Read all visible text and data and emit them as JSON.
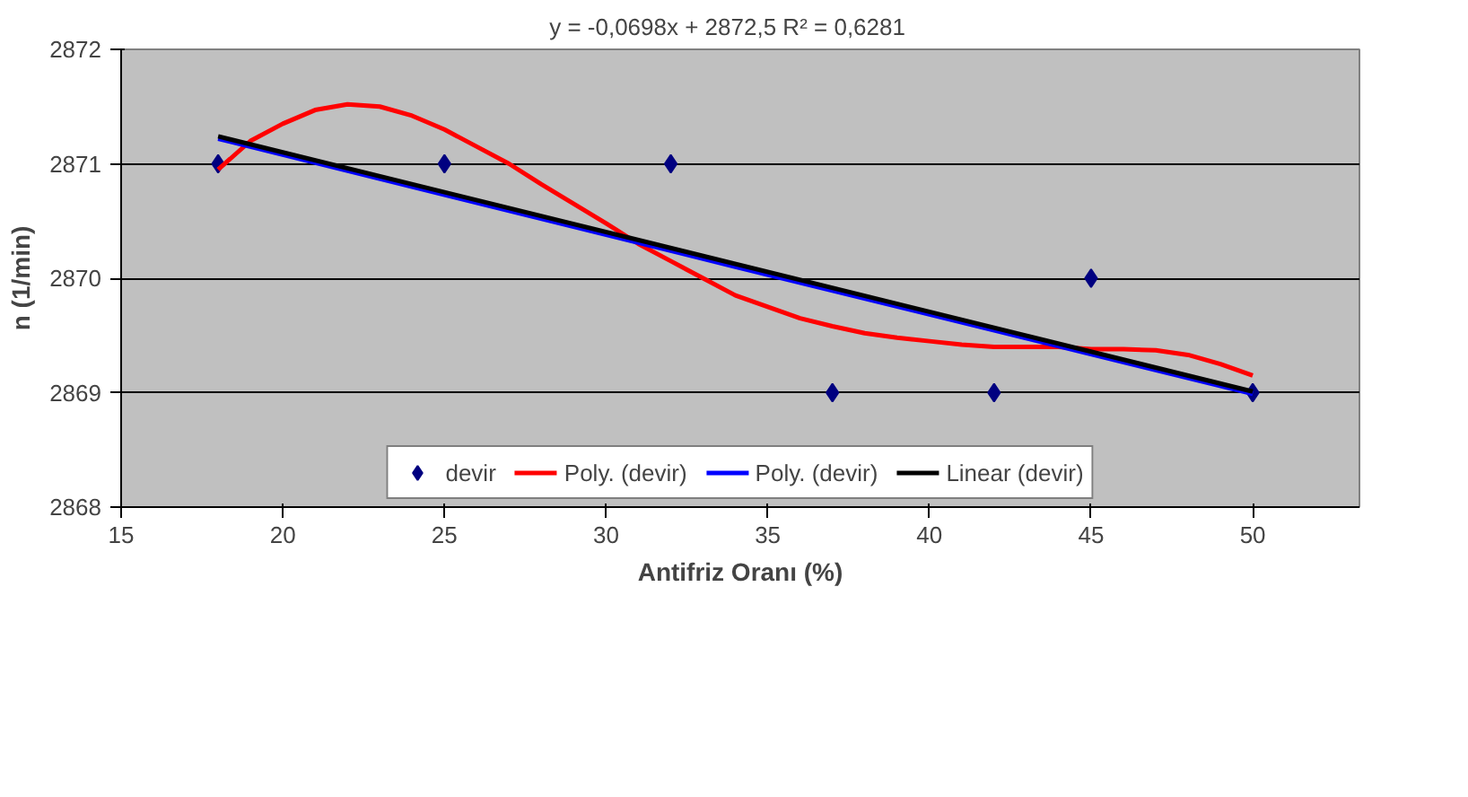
{
  "chart_data": {
    "type": "scatter",
    "xlabel": "Antifriz Oranı (%)",
    "ylabel": "n (1/min)",
    "annotations": [
      "y = -0,0698x + 2872,5     R² = 0,6281"
    ],
    "xlim": [
      15,
      53.3
    ],
    "ylim": [
      2868,
      2872
    ],
    "xticks": [
      15,
      20,
      25,
      30,
      35,
      40,
      45,
      50
    ],
    "yticks": [
      2868,
      2869,
      2870,
      2871,
      2872
    ],
    "grid": "y",
    "legend": "bottom",
    "series": [
      {
        "name": "devir",
        "marker": "diamond",
        "color": "#000080",
        "x": [
          18,
          25,
          32,
          37,
          42,
          45,
          50
        ],
        "values": [
          2871,
          2871,
          2871,
          2869,
          2869,
          2870,
          2869
        ]
      },
      {
        "name": "Poly. (devir)",
        "type": "line",
        "color": "#ff0000",
        "x": [
          18,
          19,
          20,
          21,
          22,
          23,
          24,
          25,
          26,
          27,
          28,
          29,
          30,
          31,
          32,
          33,
          34,
          35,
          36,
          37,
          38,
          39,
          40,
          41,
          42,
          43,
          44,
          45,
          46,
          47,
          48,
          49,
          50
        ],
        "values": [
          2870.95,
          2871.2,
          2871.35,
          2871.47,
          2871.52,
          2871.5,
          2871.42,
          2871.3,
          2871.15,
          2871.0,
          2870.82,
          2870.65,
          2870.48,
          2870.3,
          2870.15,
          2870.0,
          2869.85,
          2869.75,
          2869.65,
          2869.58,
          2869.52,
          2869.48,
          2869.45,
          2869.42,
          2869.4,
          2869.4,
          2869.4,
          2869.38,
          2869.38,
          2869.37,
          2869.33,
          2869.25,
          2869.15
        ]
      },
      {
        "name": "Poly. (devir)",
        "type": "line",
        "color": "#0000ff",
        "x": [
          18,
          34,
          50
        ],
        "values": [
          2871.22,
          2870.1,
          2868.99
        ]
      },
      {
        "name": "Linear (devir)",
        "type": "line",
        "color": "#000000",
        "x": [
          18,
          50
        ],
        "values": [
          2871.24,
          2869.01
        ]
      }
    ]
  }
}
